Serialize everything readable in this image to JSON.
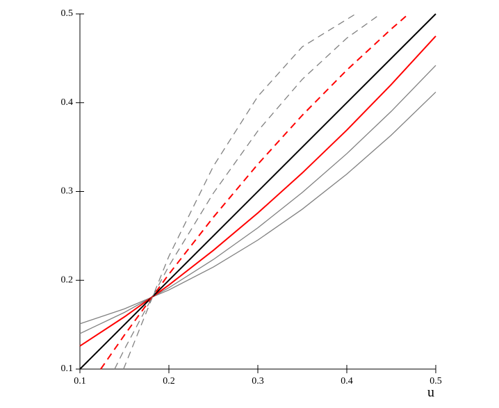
{
  "chart_data": {
    "type": "line",
    "xlabel": "u",
    "xlim": [
      0.1,
      0.5
    ],
    "ylim": [
      0.1,
      0.5
    ],
    "xticks": [
      0.1,
      0.2,
      0.3,
      0.4,
      0.5
    ],
    "yticks": [
      0.1,
      0.2,
      0.3,
      0.4,
      0.5
    ],
    "grid": false,
    "series": [
      {
        "color": "#808080",
        "dashed": false,
        "x": [
          0.1,
          0.15,
          0.2,
          0.25,
          0.3,
          0.35,
          0.4,
          0.45,
          0.5
        ],
        "values": [
          0.151,
          0.1678,
          0.1891,
          0.2149,
          0.2453,
          0.2801,
          0.3196,
          0.3635,
          0.412
        ]
      },
      {
        "color": "#808080",
        "dashed": false,
        "x": [
          0.1,
          0.15,
          0.2,
          0.25,
          0.3,
          0.35,
          0.4,
          0.45,
          0.5
        ],
        "values": [
          0.14,
          0.1638,
          0.1916,
          0.2234,
          0.2591,
          0.2989,
          0.3426,
          0.3903,
          0.442
        ]
      },
      {
        "color": "#ff0000",
        "dashed": false,
        "x": [
          0.1,
          0.15,
          0.2,
          0.25,
          0.3,
          0.35,
          0.4,
          0.45,
          0.5
        ],
        "values": [
          0.126,
          0.1588,
          0.1947,
          0.2337,
          0.2758,
          0.3209,
          0.3691,
          0.4205,
          0.475
        ]
      },
      {
        "color": "#000000",
        "dashed": false,
        "x": [
          0.1,
          0.5
        ],
        "values": [
          0.1,
          0.5
        ]
      },
      {
        "color": "#ff0000",
        "dashed": true,
        "x": [
          0.1234,
          0.15,
          0.2,
          0.25,
          0.3,
          0.35,
          0.4,
          0.45,
          0.4695
        ],
        "values": [
          0.1,
          0.1383,
          0.2069,
          0.271,
          0.3307,
          0.3859,
          0.4367,
          0.483,
          0.5
        ]
      },
      {
        "color": "#808080",
        "dashed": true,
        "x": [
          0.139,
          0.15,
          0.2,
          0.25,
          0.3,
          0.35,
          0.4,
          0.438
        ],
        "values": [
          0.1,
          0.1223,
          0.2161,
          0.2981,
          0.3682,
          0.4264,
          0.4727,
          0.5
        ]
      },
      {
        "color": "#808080",
        "dashed": true,
        "x": [
          0.149,
          0.2,
          0.25,
          0.3,
          0.35,
          0.41
        ],
        "values": [
          0.1,
          0.227,
          0.3284,
          0.4071,
          0.463,
          0.5
        ]
      }
    ]
  }
}
